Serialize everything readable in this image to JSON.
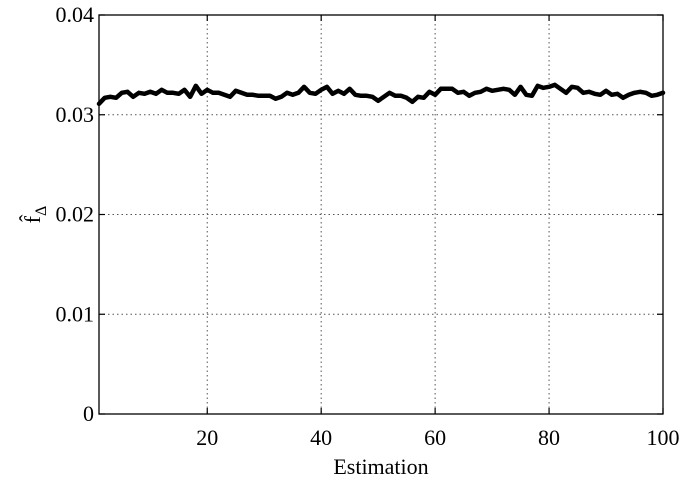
{
  "chart_data": {
    "type": "line",
    "title": "",
    "xlabel": "Estimation",
    "ylabel": "f̂Δ",
    "ylabel_parts": {
      "base": "f̂",
      "subscript": "Δ"
    },
    "xlim": [
      1,
      100
    ],
    "ylim": [
      0,
      0.04
    ],
    "xticks": [
      20,
      40,
      60,
      80,
      100
    ],
    "xtick_labels": [
      "20",
      "40",
      "60",
      "80",
      "100"
    ],
    "yticks": [
      0,
      0.01,
      0.02,
      0.03,
      0.04
    ],
    "ytick_labels": [
      "0",
      "0.01",
      "0.02",
      "0.03",
      "0.04"
    ],
    "grid": true,
    "legend": "none",
    "line_color": "#000000",
    "series": [
      {
        "x": [
          1,
          2,
          3,
          4,
          5,
          6,
          7,
          8,
          9,
          10,
          11,
          12,
          13,
          14,
          15,
          16,
          17,
          18,
          19,
          20,
          21,
          22,
          23,
          24,
          25,
          26,
          27,
          28,
          29,
          30,
          31,
          32,
          33,
          34,
          35,
          36,
          37,
          38,
          39,
          40,
          41,
          42,
          43,
          44,
          45,
          46,
          47,
          48,
          49,
          50,
          51,
          52,
          53,
          54,
          55,
          56,
          57,
          58,
          59,
          60,
          61,
          62,
          63,
          64,
          65,
          66,
          67,
          68,
          69,
          70,
          71,
          72,
          73,
          74,
          75,
          76,
          77,
          78,
          79,
          80,
          81,
          82,
          83,
          84,
          85,
          86,
          87,
          88,
          89,
          90,
          91,
          92,
          93,
          94,
          95,
          96,
          97,
          98,
          99,
          100
        ],
        "values": [
          0.0311,
          0.0317,
          0.0318,
          0.0317,
          0.0322,
          0.0323,
          0.0318,
          0.0322,
          0.0321,
          0.0323,
          0.0321,
          0.0325,
          0.0322,
          0.0322,
          0.0321,
          0.0325,
          0.0318,
          0.0329,
          0.0321,
          0.0325,
          0.0322,
          0.0322,
          0.032,
          0.0318,
          0.0324,
          0.0322,
          0.032,
          0.032,
          0.0319,
          0.0319,
          0.0319,
          0.0316,
          0.0318,
          0.0322,
          0.032,
          0.0322,
          0.0328,
          0.0322,
          0.0321,
          0.0325,
          0.0328,
          0.0321,
          0.0324,
          0.0321,
          0.0326,
          0.032,
          0.0319,
          0.0319,
          0.0318,
          0.0314,
          0.0318,
          0.0322,
          0.0319,
          0.0319,
          0.0317,
          0.0313,
          0.0318,
          0.0317,
          0.0323,
          0.032,
          0.0326,
          0.0326,
          0.0326,
          0.0322,
          0.0323,
          0.0319,
          0.0322,
          0.0323,
          0.0326,
          0.0324,
          0.0325,
          0.0326,
          0.0325,
          0.032,
          0.0328,
          0.032,
          0.0319,
          0.0329,
          0.0327,
          0.0328,
          0.033,
          0.0326,
          0.0322,
          0.0328,
          0.0327,
          0.0322,
          0.0323,
          0.0321,
          0.032,
          0.0324,
          0.032,
          0.0321,
          0.0317,
          0.032,
          0.0322,
          0.0323,
          0.0322,
          0.0319,
          0.032,
          0.0322
        ]
      }
    ]
  }
}
